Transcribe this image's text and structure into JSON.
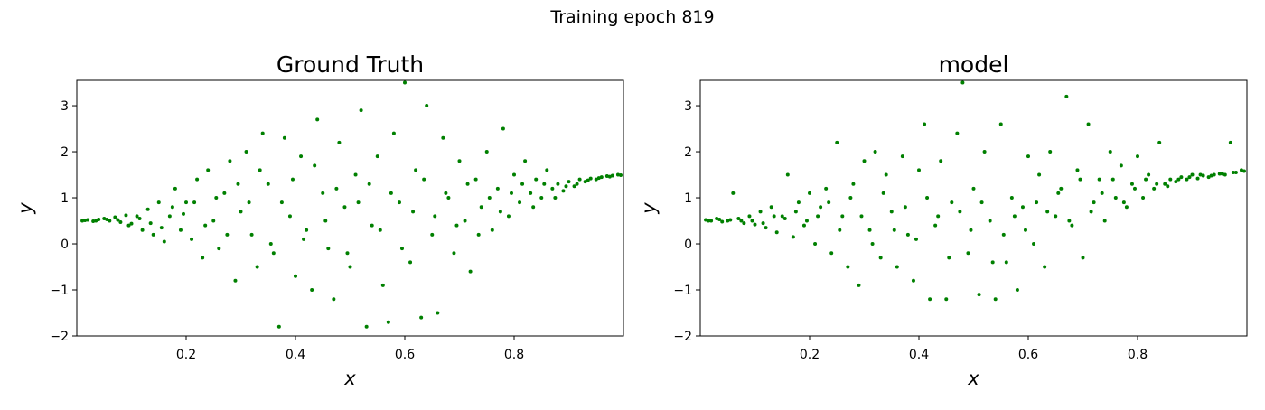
{
  "title": "Training epoch 819",
  "chart_data": [
    {
      "type": "scatter",
      "title": "Ground Truth",
      "xlabel": "x",
      "ylabel": "y",
      "color": "#008000",
      "xlim": [
        0.0,
        1.0
      ],
      "ylim": [
        -2,
        3.55
      ],
      "xticks": [
        0.2,
        0.4,
        0.6,
        0.8
      ],
      "yticks": [
        {
          "value": -2,
          "label": "−2"
        },
        {
          "value": -1,
          "label": "−1"
        },
        0,
        1,
        2,
        3
      ],
      "x": [
        0.01,
        0.02,
        0.03,
        0.04,
        0.05,
        0.06,
        0.07,
        0.08,
        0.09,
        0.1,
        0.11,
        0.12,
        0.13,
        0.14,
        0.15,
        0.16,
        0.17,
        0.18,
        0.19,
        0.2,
        0.21,
        0.22,
        0.23,
        0.24,
        0.25,
        0.26,
        0.27,
        0.28,
        0.29,
        0.3,
        0.31,
        0.32,
        0.33,
        0.34,
        0.35,
        0.36,
        0.37,
        0.38,
        0.39,
        0.4,
        0.41,
        0.42,
        0.43,
        0.44,
        0.45,
        0.46,
        0.47,
        0.48,
        0.49,
        0.5,
        0.51,
        0.52,
        0.53,
        0.54,
        0.55,
        0.56,
        0.57,
        0.58,
        0.59,
        0.6,
        0.61,
        0.62,
        0.63,
        0.64,
        0.65,
        0.66,
        0.67,
        0.68,
        0.69,
        0.7,
        0.71,
        0.72,
        0.73,
        0.74,
        0.75,
        0.76,
        0.77,
        0.78,
        0.79,
        0.8,
        0.81,
        0.82,
        0.83,
        0.84,
        0.85,
        0.86,
        0.87,
        0.88,
        0.89,
        0.9,
        0.91,
        0.92,
        0.93,
        0.94,
        0.95,
        0.96,
        0.97,
        0.98,
        0.99,
        0.015,
        0.035,
        0.055,
        0.075,
        0.095,
        0.115,
        0.135,
        0.155,
        0.175,
        0.195,
        0.215,
        0.235,
        0.255,
        0.275,
        0.295,
        0.315,
        0.335,
        0.355,
        0.375,
        0.395,
        0.415,
        0.435,
        0.455,
        0.475,
        0.495,
        0.515,
        0.535,
        0.555,
        0.575,
        0.595,
        0.615,
        0.635,
        0.655,
        0.675,
        0.695,
        0.715,
        0.735,
        0.755,
        0.775,
        0.795,
        0.815,
        0.835,
        0.855,
        0.875,
        0.895,
        0.915,
        0.935,
        0.955,
        0.975,
        0.995
      ],
      "y": [
        0.5,
        0.52,
        0.49,
        0.53,
        0.55,
        0.5,
        0.58,
        0.47,
        0.62,
        0.44,
        0.6,
        0.3,
        0.75,
        0.2,
        0.9,
        0.05,
        0.6,
        1.2,
        0.3,
        0.9,
        0.1,
        1.4,
        -0.3,
        1.6,
        0.5,
        -0.1,
        1.1,
        1.8,
        -0.8,
        0.7,
        2.0,
        0.2,
        -0.5,
        2.4,
        1.3,
        -0.2,
        -1.8,
        2.3,
        0.6,
        -0.7,
        1.9,
        0.3,
        -1.0,
        2.7,
        1.1,
        -0.1,
        -1.2,
        2.2,
        0.8,
        -0.5,
        1.5,
        2.9,
        -1.8,
        0.4,
        1.9,
        -0.9,
        -1.7,
        2.4,
        0.9,
        3.5,
        -0.4,
        1.6,
        -1.6,
        3.0,
        0.2,
        -1.5,
        2.3,
        1.0,
        -0.2,
        1.8,
        0.5,
        -0.6,
        1.4,
        0.8,
        2.0,
        0.3,
        1.2,
        2.5,
        0.6,
        1.5,
        0.9,
        1.8,
        1.1,
        1.4,
        1.0,
        1.6,
        1.2,
        1.3,
        1.15,
        1.35,
        1.25,
        1.4,
        1.35,
        1.42,
        1.4,
        1.45,
        1.47,
        1.48,
        1.5,
        0.51,
        0.5,
        0.53,
        0.52,
        0.4,
        0.55,
        0.45,
        0.35,
        0.8,
        0.65,
        0.9,
        0.4,
        1.0,
        0.2,
        1.3,
        0.9,
        1.6,
        0.0,
        0.9,
        1.4,
        0.1,
        1.7,
        0.5,
        1.2,
        -0.2,
        0.9,
        1.3,
        0.3,
        1.1,
        -0.1,
        0.7,
        1.4,
        0.6,
        1.1,
        0.4,
        1.3,
        0.2,
        1.0,
        0.7,
        1.1,
        1.3,
        0.8,
        1.3,
        1.0,
        1.25,
        1.3,
        1.38,
        1.43,
        1.46,
        1.49
      ]
    },
    {
      "type": "scatter",
      "title": "model",
      "xlabel": "x",
      "ylabel": "y",
      "color": "#008000",
      "xlim": [
        0.0,
        1.0
      ],
      "ylim": [
        -2,
        3.55
      ],
      "xticks": [
        0.2,
        0.4,
        0.6,
        0.8
      ],
      "yticks": [
        {
          "value": -2,
          "label": "−2"
        },
        {
          "value": -1,
          "label": "−1"
        },
        0,
        1,
        2,
        3
      ],
      "x": [
        0.01,
        0.02,
        0.03,
        0.04,
        0.05,
        0.06,
        0.07,
        0.08,
        0.09,
        0.1,
        0.11,
        0.12,
        0.13,
        0.14,
        0.15,
        0.16,
        0.17,
        0.18,
        0.19,
        0.2,
        0.21,
        0.22,
        0.23,
        0.24,
        0.25,
        0.26,
        0.27,
        0.28,
        0.29,
        0.3,
        0.31,
        0.32,
        0.33,
        0.34,
        0.35,
        0.36,
        0.37,
        0.38,
        0.39,
        0.4,
        0.41,
        0.42,
        0.43,
        0.44,
        0.45,
        0.46,
        0.47,
        0.48,
        0.49,
        0.5,
        0.51,
        0.52,
        0.53,
        0.54,
        0.55,
        0.56,
        0.57,
        0.58,
        0.59,
        0.6,
        0.61,
        0.62,
        0.63,
        0.64,
        0.65,
        0.66,
        0.67,
        0.68,
        0.69,
        0.7,
        0.71,
        0.72,
        0.73,
        0.74,
        0.75,
        0.76,
        0.77,
        0.78,
        0.79,
        0.8,
        0.81,
        0.82,
        0.83,
        0.84,
        0.85,
        0.86,
        0.87,
        0.88,
        0.89,
        0.9,
        0.91,
        0.92,
        0.93,
        0.94,
        0.95,
        0.96,
        0.97,
        0.98,
        0.99,
        0.015,
        0.035,
        0.055,
        0.075,
        0.095,
        0.115,
        0.135,
        0.155,
        0.175,
        0.195,
        0.215,
        0.235,
        0.255,
        0.275,
        0.295,
        0.315,
        0.335,
        0.355,
        0.375,
        0.395,
        0.415,
        0.435,
        0.455,
        0.475,
        0.495,
        0.515,
        0.535,
        0.555,
        0.575,
        0.595,
        0.615,
        0.635,
        0.655,
        0.675,
        0.695,
        0.715,
        0.735,
        0.755,
        0.775,
        0.795,
        0.815,
        0.835,
        0.855,
        0.875,
        0.895,
        0.915,
        0.935,
        0.955,
        0.975,
        0.995
      ],
      "y": [
        0.52,
        0.5,
        0.55,
        0.48,
        0.5,
        1.1,
        0.55,
        0.45,
        0.6,
        0.42,
        0.7,
        0.35,
        0.8,
        0.25,
        0.6,
        1.5,
        0.15,
        0.9,
        0.4,
        1.1,
        0.0,
        0.8,
        1.2,
        -0.2,
        2.2,
        0.6,
        -0.5,
        1.3,
        -0.9,
        1.8,
        0.3,
        2.0,
        -0.3,
        1.5,
        0.7,
        -0.5,
        1.9,
        0.2,
        -0.8,
        1.6,
        2.6,
        -1.2,
        0.4,
        1.8,
        -1.2,
        0.9,
        2.4,
        3.5,
        -0.2,
        1.2,
        -1.1,
        2.0,
        0.5,
        -1.2,
        2.6,
        -0.4,
        1.0,
        -1.0,
        0.8,
        1.9,
        0.0,
        1.5,
        -0.5,
        2.0,
        0.6,
        1.2,
        3.2,
        0.4,
        1.6,
        -0.3,
        2.6,
        0.9,
        1.4,
        0.5,
        2.0,
        1.0,
        1.7,
        0.8,
        1.3,
        1.9,
        1.0,
        1.5,
        1.2,
        2.2,
        1.3,
        1.4,
        1.35,
        1.45,
        1.4,
        1.5,
        1.42,
        1.48,
        1.45,
        1.5,
        1.52,
        1.5,
        2.2,
        1.55,
        1.6,
        0.5,
        0.53,
        0.52,
        0.5,
        0.5,
        0.45,
        0.6,
        0.55,
        0.7,
        0.5,
        0.6,
        0.9,
        0.3,
        1.0,
        0.6,
        0.0,
        1.1,
        0.3,
        0.8,
        0.1,
        1.0,
        0.6,
        -0.3,
        0.7,
        0.3,
        0.9,
        -0.4,
        0.2,
        0.6,
        0.3,
        0.9,
        0.7,
        1.1,
        0.5,
        1.4,
        0.7,
        1.1,
        1.4,
        0.9,
        1.2,
        1.4,
        1.3,
        1.25,
        1.4,
        1.45,
        1.5,
        1.48,
        1.52,
        1.55,
        1.58
      ]
    }
  ]
}
